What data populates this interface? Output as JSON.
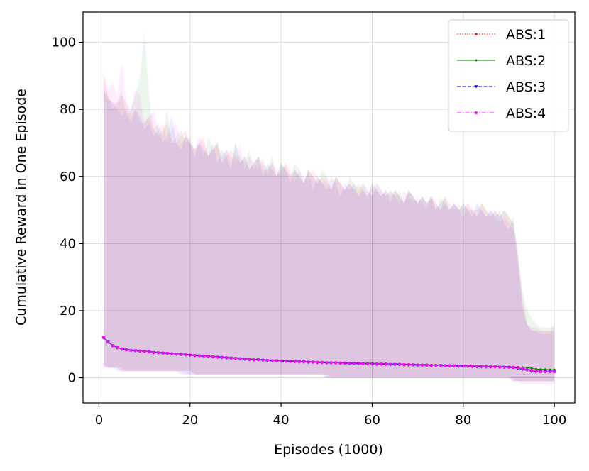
{
  "chart_data": {
    "type": "line",
    "xlabel": "Episodes (1000)",
    "ylabel": "Cumulative Reward in One Episode",
    "xlim": [
      -3.5,
      104.5
    ],
    "ylim": [
      -7.5,
      109
    ],
    "xticks": [
      0,
      20,
      40,
      60,
      80,
      100
    ],
    "yticks": [
      0,
      20,
      40,
      60,
      80,
      100
    ],
    "grid": true,
    "legend_position": "top-right",
    "x_start": 1,
    "x_step": 1,
    "series": [
      {
        "name": "ABS:1",
        "color": "#ff0000",
        "linestyle": "dotted",
        "marker": "point",
        "mean": [
          12.0,
          10.7,
          9.6,
          9.0,
          8.6,
          8.4,
          8.2,
          8.1,
          8.0,
          7.9,
          7.8,
          7.6,
          7.5,
          7.4,
          7.3,
          7.2,
          7.1,
          7.0,
          6.9,
          6.8,
          6.7,
          6.6,
          6.5,
          6.4,
          6.3,
          6.2,
          6.1,
          6.0,
          5.9,
          5.8,
          5.7,
          5.6,
          5.5,
          5.4,
          5.4,
          5.3,
          5.2,
          5.1,
          5.1,
          5.0,
          5.0,
          4.9,
          4.9,
          4.8,
          4.8,
          4.7,
          4.7,
          4.6,
          4.6,
          4.5,
          4.5,
          4.5,
          4.4,
          4.4,
          4.3,
          4.3,
          4.3,
          4.2,
          4.2,
          4.2,
          4.1,
          4.1,
          4.1,
          4.0,
          4.0,
          4.0,
          3.9,
          3.9,
          3.9,
          3.8,
          3.8,
          3.8,
          3.7,
          3.7,
          3.7,
          3.6,
          3.6,
          3.6,
          3.5,
          3.5,
          3.5,
          3.4,
          3.4,
          3.4,
          3.3,
          3.3,
          3.3,
          3.2,
          3.2,
          3.2,
          3.1,
          3.0,
          2.8,
          2.6,
          2.4,
          2.3,
          2.2,
          2.2,
          2.1,
          2.1
        ],
        "upper": [
          90,
          84,
          82,
          82,
          84,
          82,
          78,
          80,
          76,
          76,
          78,
          74,
          72,
          74,
          76,
          70,
          70,
          72,
          74,
          70,
          68,
          70,
          72,
          66,
          68,
          70,
          64,
          66,
          68,
          66,
          64,
          66,
          62,
          64,
          66,
          62,
          62,
          64,
          60,
          62,
          64,
          60,
          62,
          60,
          58,
          62,
          60,
          58,
          60,
          58,
          56,
          60,
          58,
          56,
          58,
          56,
          58,
          56,
          54,
          58,
          56,
          54,
          56,
          54,
          56,
          54,
          52,
          56,
          54,
          52,
          54,
          52,
          54,
          52,
          50,
          54,
          52,
          50,
          52,
          50,
          52,
          50,
          50,
          52,
          50,
          48,
          50,
          48,
          50,
          48,
          46,
          36,
          24,
          16,
          15,
          15,
          14,
          14,
          14,
          14
        ],
        "lower": [
          4,
          3,
          3,
          3,
          2,
          2,
          2,
          2,
          2,
          2,
          2,
          2,
          2,
          2,
          2,
          2,
          2,
          2,
          2,
          2,
          1,
          1,
          1,
          1,
          1,
          1,
          1,
          1,
          1,
          1,
          1,
          1,
          1,
          1,
          1,
          1,
          1,
          1,
          1,
          1,
          1,
          1,
          1,
          1,
          1,
          1,
          1,
          1,
          1,
          1,
          0,
          0,
          0,
          0,
          0,
          0,
          0,
          0,
          0,
          0,
          0,
          0,
          0,
          0,
          0,
          0,
          0,
          0,
          0,
          0,
          0,
          0,
          0,
          0,
          0,
          0,
          0,
          0,
          0,
          0,
          0,
          0,
          0,
          0,
          0,
          0,
          0,
          0,
          0,
          0,
          -1,
          -1,
          -1,
          -1,
          -1,
          -1,
          -1,
          -1,
          -1,
          -1
        ]
      },
      {
        "name": "ABS:2",
        "color": "#008000",
        "linestyle": "solid",
        "marker": "point",
        "mean": [
          12.1,
          10.8,
          9.7,
          9.1,
          8.7,
          8.5,
          8.3,
          8.2,
          8.1,
          8.0,
          7.9,
          7.7,
          7.6,
          7.5,
          7.4,
          7.3,
          7.2,
          7.1,
          7.0,
          6.9,
          6.8,
          6.7,
          6.6,
          6.5,
          6.4,
          6.3,
          6.2,
          6.1,
          6.0,
          5.9,
          5.8,
          5.7,
          5.6,
          5.5,
          5.5,
          5.4,
          5.3,
          5.2,
          5.2,
          5.1,
          5.1,
          5.0,
          5.0,
          4.9,
          4.9,
          4.8,
          4.8,
          4.7,
          4.7,
          4.6,
          4.6,
          4.6,
          4.5,
          4.5,
          4.4,
          4.4,
          4.4,
          4.3,
          4.3,
          4.3,
          4.2,
          4.2,
          4.2,
          4.1,
          4.1,
          4.1,
          4.0,
          4.0,
          4.0,
          3.9,
          3.9,
          3.9,
          3.8,
          3.8,
          3.8,
          3.7,
          3.7,
          3.7,
          3.6,
          3.6,
          3.6,
          3.5,
          3.5,
          3.5,
          3.4,
          3.4,
          3.4,
          3.3,
          3.3,
          3.3,
          3.2,
          3.2,
          3.1,
          3.0,
          2.8,
          2.6,
          2.5,
          2.5,
          2.4,
          2.4
        ],
        "upper": [
          86,
          84,
          80,
          82,
          86,
          78,
          80,
          84,
          90,
          103,
          84,
          74,
          76,
          72,
          80,
          70,
          72,
          74,
          70,
          72,
          68,
          70,
          66,
          72,
          68,
          70,
          66,
          68,
          64,
          70,
          66,
          64,
          68,
          62,
          66,
          64,
          62,
          66,
          60,
          64,
          62,
          60,
          64,
          62,
          58,
          62,
          60,
          58,
          62,
          60,
          56,
          60,
          58,
          56,
          60,
          58,
          56,
          58,
          56,
          54,
          58,
          56,
          54,
          56,
          54,
          56,
          52,
          56,
          54,
          52,
          54,
          52,
          54,
          50,
          54,
          52,
          50,
          52,
          50,
          52,
          50,
          50,
          48,
          52,
          50,
          48,
          50,
          48,
          50,
          48,
          46,
          38,
          26,
          20,
          18,
          16,
          15,
          15,
          15,
          15
        ],
        "lower": [
          4,
          3,
          3,
          3,
          3,
          2,
          2,
          2,
          2,
          2,
          2,
          2,
          2,
          2,
          2,
          2,
          2,
          2,
          2,
          2,
          1,
          1,
          1,
          1,
          1,
          1,
          1,
          1,
          1,
          1,
          1,
          1,
          1,
          1,
          1,
          1,
          1,
          1,
          1,
          1,
          1,
          1,
          1,
          1,
          1,
          1,
          1,
          1,
          1,
          1,
          0,
          0,
          0,
          0,
          0,
          0,
          0,
          0,
          0,
          0,
          0,
          0,
          0,
          0,
          0,
          0,
          0,
          0,
          0,
          0,
          0,
          0,
          0,
          0,
          0,
          0,
          0,
          0,
          0,
          0,
          0,
          0,
          0,
          0,
          0,
          0,
          0,
          0,
          0,
          0,
          0,
          -1,
          -1,
          -1,
          -1,
          -1,
          -1,
          -1,
          -1,
          -1
        ]
      },
      {
        "name": "ABS:3",
        "color": "#0000ff",
        "linestyle": "dashed",
        "marker": "triangle-down",
        "mean": [
          11.9,
          10.6,
          9.5,
          8.9,
          8.5,
          8.3,
          8.1,
          8.0,
          7.9,
          7.8,
          7.7,
          7.5,
          7.4,
          7.3,
          7.2,
          7.1,
          7.0,
          6.9,
          6.8,
          6.7,
          6.6,
          6.5,
          6.4,
          6.3,
          6.2,
          6.1,
          6.0,
          5.9,
          5.8,
          5.7,
          5.6,
          5.5,
          5.4,
          5.3,
          5.3,
          5.2,
          5.1,
          5.0,
          5.0,
          4.9,
          4.9,
          4.8,
          4.8,
          4.7,
          4.7,
          4.6,
          4.6,
          4.5,
          4.5,
          4.4,
          4.4,
          4.4,
          4.3,
          4.3,
          4.2,
          4.2,
          4.2,
          4.1,
          4.1,
          4.1,
          4.0,
          4.0,
          4.0,
          3.9,
          3.9,
          3.9,
          3.8,
          3.8,
          3.8,
          3.7,
          3.7,
          3.7,
          3.6,
          3.6,
          3.6,
          3.5,
          3.5,
          3.5,
          3.4,
          3.4,
          3.4,
          3.3,
          3.3,
          3.3,
          3.2,
          3.2,
          3.2,
          3.1,
          3.1,
          3.1,
          3.0,
          2.8,
          2.5,
          2.2,
          1.9,
          1.8,
          1.8,
          1.8,
          1.8,
          1.8
        ],
        "upper": [
          85,
          83,
          82,
          80,
          78,
          80,
          76,
          80,
          78,
          74,
          76,
          72,
          74,
          70,
          72,
          78,
          70,
          68,
          72,
          70,
          66,
          70,
          68,
          66,
          70,
          64,
          68,
          66,
          62,
          70,
          64,
          66,
          62,
          64,
          66,
          60,
          64,
          62,
          60,
          64,
          62,
          58,
          62,
          60,
          58,
          62,
          56,
          60,
          58,
          56,
          60,
          58,
          54,
          58,
          56,
          58,
          54,
          56,
          54,
          58,
          56,
          54,
          56,
          52,
          56,
          54,
          52,
          56,
          54,
          52,
          54,
          52,
          54,
          50,
          52,
          54,
          50,
          52,
          50,
          52,
          50,
          48,
          52,
          50,
          48,
          50,
          48,
          50,
          46,
          44,
          48,
          36,
          22,
          16,
          14,
          14,
          13,
          13,
          13,
          17
        ],
        "lower": [
          3,
          3,
          3,
          2,
          2,
          2,
          2,
          2,
          2,
          2,
          2,
          2,
          2,
          2,
          2,
          2,
          2,
          1,
          1,
          1,
          1,
          1,
          1,
          1,
          1,
          1,
          1,
          1,
          1,
          1,
          1,
          1,
          1,
          1,
          1,
          1,
          1,
          1,
          1,
          1,
          1,
          1,
          1,
          1,
          1,
          1,
          1,
          1,
          1,
          0,
          0,
          0,
          0,
          0,
          0,
          0,
          0,
          0,
          0,
          0,
          0,
          0,
          0,
          0,
          0,
          0,
          0,
          0,
          0,
          0,
          0,
          0,
          0,
          0,
          0,
          0,
          0,
          0,
          0,
          0,
          0,
          0,
          0,
          0,
          0,
          0,
          0,
          0,
          0,
          0,
          -1,
          -1,
          -1,
          -1,
          -1,
          -1,
          -1,
          -1,
          -1,
          -1
        ]
      },
      {
        "name": "ABS:4",
        "color": "#ff00ff",
        "linestyle": "dashdot",
        "marker": "square",
        "mean": [
          12.0,
          10.7,
          9.6,
          9.0,
          8.6,
          8.4,
          8.2,
          8.1,
          8.0,
          7.9,
          7.8,
          7.6,
          7.5,
          7.4,
          7.3,
          7.2,
          7.1,
          7.0,
          6.9,
          6.8,
          6.7,
          6.6,
          6.5,
          6.4,
          6.3,
          6.2,
          6.1,
          6.0,
          5.9,
          5.8,
          5.7,
          5.6,
          5.5,
          5.4,
          5.4,
          5.3,
          5.2,
          5.1,
          5.1,
          5.0,
          5.0,
          4.9,
          4.9,
          4.8,
          4.8,
          4.7,
          4.7,
          4.6,
          4.6,
          4.5,
          4.5,
          4.5,
          4.4,
          4.4,
          4.3,
          4.3,
          4.3,
          4.2,
          4.2,
          4.2,
          4.1,
          4.1,
          4.1,
          4.0,
          4.0,
          4.0,
          3.9,
          3.9,
          3.9,
          3.8,
          3.8,
          3.8,
          3.7,
          3.7,
          3.7,
          3.6,
          3.6,
          3.6,
          3.5,
          3.5,
          3.5,
          3.4,
          3.4,
          3.4,
          3.3,
          3.3,
          3.3,
          3.2,
          3.2,
          3.2,
          3.1,
          3.0,
          2.7,
          2.4,
          2.1,
          1.9,
          1.8,
          1.8,
          1.8,
          1.8
        ],
        "upper": [
          91,
          86,
          88,
          84,
          94,
          82,
          80,
          86,
          84,
          76,
          78,
          80,
          74,
          76,
          70,
          74,
          76,
          70,
          72,
          70,
          68,
          72,
          70,
          66,
          68,
          70,
          64,
          68,
          66,
          64,
          70,
          62,
          66,
          64,
          62,
          66,
          60,
          64,
          62,
          60,
          64,
          62,
          58,
          62,
          60,
          58,
          62,
          60,
          58,
          60,
          56,
          60,
          58,
          56,
          58,
          56,
          54,
          58,
          56,
          54,
          58,
          56,
          54,
          56,
          54,
          52,
          56,
          54,
          52,
          54,
          52,
          50,
          54,
          52,
          50,
          52,
          50,
          52,
          50,
          48,
          52,
          50,
          48,
          50,
          48,
          50,
          48,
          46,
          48,
          46,
          44,
          34,
          20,
          16,
          14,
          14,
          14,
          14,
          14,
          13
        ],
        "lower": [
          3,
          3,
          3,
          3,
          2,
          2,
          2,
          2,
          2,
          2,
          2,
          2,
          2,
          2,
          2,
          2,
          2,
          2,
          1,
          1,
          1,
          1,
          1,
          1,
          1,
          1,
          1,
          1,
          1,
          1,
          1,
          1,
          1,
          1,
          1,
          1,
          1,
          1,
          1,
          1,
          1,
          1,
          1,
          1,
          1,
          1,
          1,
          1,
          1,
          0,
          0,
          0,
          0,
          0,
          0,
          0,
          0,
          0,
          0,
          0,
          0,
          0,
          0,
          0,
          0,
          0,
          0,
          0,
          0,
          0,
          0,
          0,
          0,
          0,
          0,
          0,
          0,
          0,
          0,
          0,
          0,
          0,
          0,
          0,
          0,
          0,
          0,
          0,
          0,
          0,
          -1,
          -1,
          -2,
          -2,
          -2,
          -2,
          -2,
          -2,
          -2,
          -2
        ]
      }
    ]
  }
}
